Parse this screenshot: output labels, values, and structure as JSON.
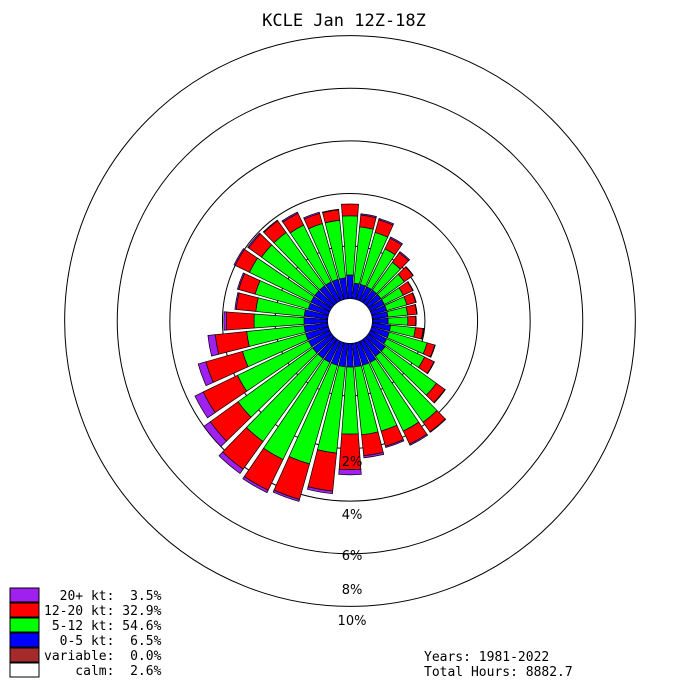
{
  "chart_data": {
    "type": "windrose",
    "title": "KCLE Jan 12Z-18Z",
    "ring_labels": [
      "2%",
      "4%",
      "6%",
      "8%",
      "10%"
    ],
    "rings": [
      2,
      4,
      6,
      8,
      10
    ],
    "calm_radius_pct": 0.85,
    "directions_deg": [
      0,
      10,
      20,
      30,
      40,
      50,
      60,
      70,
      80,
      90,
      100,
      110,
      120,
      130,
      140,
      150,
      160,
      170,
      180,
      190,
      200,
      210,
      220,
      230,
      240,
      250,
      260,
      270,
      280,
      290,
      300,
      310,
      320,
      330,
      340,
      350
    ],
    "series": [
      {
        "name": "0-5 kt",
        "color": "#0000ff",
        "values": [
          0.9,
          0.6,
          0.6,
          0.6,
          0.6,
          0.6,
          0.6,
          0.6,
          0.6,
          0.6,
          0.7,
          0.7,
          0.7,
          0.8,
          0.8,
          0.9,
          0.9,
          0.9,
          0.9,
          0.9,
          0.9,
          0.9,
          0.9,
          0.9,
          0.9,
          0.9,
          0.9,
          0.9,
          0.9,
          0.8,
          0.8,
          0.8,
          0.8,
          0.8,
          0.8,
          0.8
        ]
      },
      {
        "name": "5-12 kt",
        "color": "#00ff00",
        "values": [
          2.25,
          2.15,
          2.05,
          1.6,
          1.3,
          1.1,
          0.8,
          0.8,
          0.75,
          0.75,
          0.95,
          1.5,
          1.6,
          2.4,
          3.1,
          2.9,
          2.6,
          2.6,
          2.55,
          3.3,
          3.9,
          4.1,
          3.9,
          3.5,
          3.0,
          2.5,
          2.2,
          1.9,
          1.85,
          2.1,
          2.6,
          2.5,
          2.5,
          2.4,
          2.2,
          2.2
        ]
      },
      {
        "name": "12-20 kt",
        "color": "#ff0000",
        "values": [
          0.45,
          0.45,
          0.5,
          0.45,
          0.45,
          0.4,
          0.4,
          0.35,
          0.35,
          0.3,
          0.3,
          0.3,
          0.4,
          0.4,
          0.45,
          0.55,
          0.6,
          0.8,
          1.35,
          1.45,
          1.4,
          1.3,
          1.3,
          1.3,
          1.45,
          1.45,
          1.2,
          1.05,
          0.75,
          0.65,
          0.6,
          0.6,
          0.55,
          0.5,
          0.4,
          0.4
        ]
      },
      {
        "name": "20+ kt",
        "color": "#a020f0",
        "values": [
          0.0,
          0.05,
          0.05,
          0.05,
          0.05,
          0.02,
          0.02,
          0.02,
          0.02,
          0.02,
          0.02,
          0.02,
          0.02,
          0.02,
          0.02,
          0.05,
          0.05,
          0.08,
          0.2,
          0.1,
          0.08,
          0.1,
          0.2,
          0.3,
          0.35,
          0.3,
          0.28,
          0.1,
          0.05,
          0.05,
          0.05,
          0.05,
          0.03,
          0.05,
          0.05,
          0.02
        ]
      }
    ],
    "legend": [
      {
        "text": "  20+ kt:  3.5%",
        "color": "#a020f0"
      },
      {
        "text": "12-20 kt: 32.9%",
        "color": "#ff0000"
      },
      {
        "text": " 5-12 kt: 54.6%",
        "color": "#00ff00"
      },
      {
        "text": "  0-5 kt:  6.5%",
        "color": "#0000ff"
      },
      {
        "text": "variable:  0.0%",
        "color": "#a52a2a"
      },
      {
        "text": "    calm:  2.6%",
        "color": "#ffffff"
      }
    ],
    "footer": {
      "years": "Years: 1981-2022",
      "hours": "Total Hours: 8882.7"
    }
  }
}
